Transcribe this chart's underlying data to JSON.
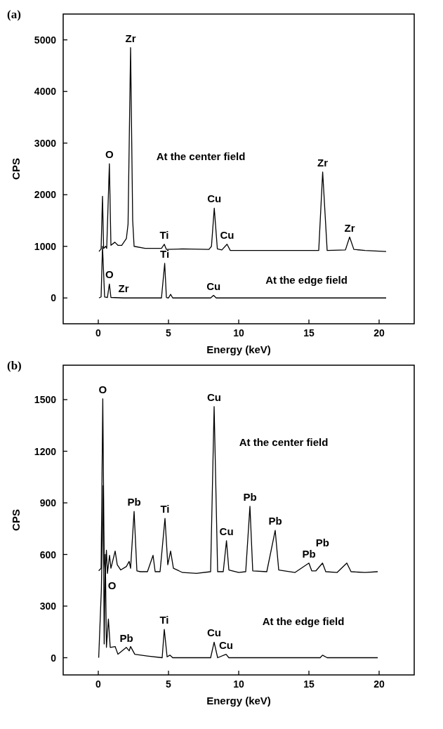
{
  "chart_data": [
    {
      "type": "line",
      "title": "(a)",
      "xlabel": "Energy (keV)",
      "ylabel": "CPS",
      "xlim": [
        -2.5,
        22.5
      ],
      "xticks": [
        0,
        5,
        10,
        15,
        20
      ],
      "ylim": [
        -500,
        5500
      ],
      "yticks": [
        0,
        1000,
        2000,
        3000,
        4000,
        5000
      ],
      "grid": false,
      "marker": "none",
      "line_style": "solid",
      "series": [
        {
          "color": "#000000",
          "x": [
            0.05,
            0.2,
            0.3,
            0.38,
            0.53,
            0.6,
            0.79,
            0.9,
            1.18,
            1.4,
            1.67,
            2.0,
            2.12,
            2.3,
            2.45,
            2.55,
            3.33,
            4.5,
            4.7,
            4.85,
            6.0,
            7.88,
            8.06,
            8.26,
            8.48,
            8.8,
            9.17,
            9.4,
            12.0,
            15.7,
            15.98,
            16.3,
            17.6,
            17.9,
            18.2,
            19.0,
            20.5
          ],
          "values": [
            900,
            950,
            1970,
            960,
            1000,
            960,
            2600,
            1020,
            1080,
            1020,
            1020,
            1150,
            1430,
            4850,
            1500,
            1000,
            960,
            960,
            1040,
            940,
            950,
            940,
            1000,
            1740,
            950,
            930,
            1040,
            920,
            920,
            920,
            2440,
            920,
            930,
            1180,
            940,
            920,
            900
          ]
        },
        {
          "color": "#000000",
          "x": [
            0.05,
            0.2,
            0.3,
            0.45,
            0.65,
            0.79,
            0.9,
            1.8,
            4.5,
            4.73,
            4.85,
            5.0,
            5.15,
            5.3,
            8.0,
            8.21,
            8.4,
            20.5
          ],
          "values": [
            0,
            20,
            1000,
            20,
            10,
            270,
            10,
            0,
            0,
            670,
            10,
            0,
            70,
            0,
            0,
            50,
            0,
            0
          ]
        }
      ],
      "annotations": [
        {
          "text": "Zr",
          "x": 2.3,
          "y": 4850
        },
        {
          "text": "O",
          "x": 0.79,
          "y": 2600
        },
        "At the center field",
        {
          "text": "Ti",
          "x": 4.7,
          "y": 1040
        },
        {
          "text": "Cu",
          "x": 8.26,
          "y": 1740
        },
        {
          "text": "Cu",
          "x": 9.17,
          "y": 1040
        },
        {
          "text": "Zr",
          "x": 15.98,
          "y": 2440
        },
        {
          "text": "Zr",
          "x": 17.9,
          "y": 1180
        },
        {
          "text": "Ti",
          "x": 4.73,
          "y": 670
        },
        {
          "text": "O",
          "x": 0.79,
          "y": 270
        },
        {
          "text": "Zr",
          "x": 1.8,
          "y": 0
        },
        {
          "text": "Cu",
          "x": 8.21,
          "y": 50
        },
        "At the edge field"
      ]
    },
    {
      "type": "line",
      "title": "(b)",
      "xlabel": "Energy (keV)",
      "ylabel": "CPS",
      "xlim": [
        -2.5,
        22.5
      ],
      "xticks": [
        0,
        5,
        10,
        15,
        20
      ],
      "ylim": [
        -100,
        1700
      ],
      "yticks": [
        0,
        300,
        600,
        900,
        1200,
        1500
      ],
      "grid": false,
      "marker": "none",
      "line_style": "solid",
      "series": [
        {
          "color": "#000000",
          "x": [
            0.03,
            0.2,
            0.32,
            0.42,
            0.5,
            0.58,
            0.65,
            0.8,
            0.9,
            1.2,
            1.35,
            1.6,
            2.0,
            2.2,
            2.3,
            2.55,
            2.75,
            3.0,
            3.5,
            3.9,
            4.05,
            4.4,
            4.75,
            4.95,
            5.15,
            5.35,
            6.0,
            7.0,
            8.0,
            8.25,
            8.5,
            8.9,
            9.13,
            9.3,
            10.0,
            10.5,
            10.8,
            11.0,
            12.0,
            12.6,
            12.85,
            14.0,
            15.0,
            15.2,
            15.5,
            15.97,
            16.2,
            17.0,
            17.7,
            18.0,
            19.0,
            19.9
          ],
          "values": [
            505,
            520,
            1505,
            560,
            500,
            625,
            490,
            595,
            520,
            620,
            540,
            510,
            530,
            560,
            520,
            850,
            505,
            500,
            500,
            595,
            500,
            500,
            810,
            540,
            620,
            520,
            495,
            490,
            500,
            1460,
            500,
            500,
            680,
            510,
            495,
            500,
            880,
            505,
            500,
            740,
            510,
            495,
            550,
            505,
            505,
            550,
            500,
            495,
            550,
            500,
            495,
            500
          ]
        },
        {
          "color": "#000000",
          "x": [
            0.03,
            0.22,
            0.35,
            0.42,
            0.5,
            0.58,
            0.72,
            0.85,
            1.2,
            1.4,
            2.0,
            2.2,
            2.3,
            2.6,
            3.5,
            4.55,
            4.7,
            4.9,
            5.1,
            5.3,
            8.0,
            8.25,
            8.5,
            9.1,
            9.3,
            15.8,
            15.97,
            16.3,
            19.9
          ],
          "values": [
            0,
            400,
            1000,
            80,
            600,
            60,
            225,
            60,
            65,
            20,
            60,
            40,
            65,
            20,
            10,
            0,
            165,
            5,
            15,
            0,
            0,
            90,
            0,
            20,
            0,
            0,
            15,
            0,
            0
          ]
        }
      ],
      "annotations": [
        {
          "text": "O",
          "x": 0.32,
          "y": 1505
        },
        {
          "text": "Cu",
          "x": 8.25,
          "y": 1460
        },
        "At the center field",
        {
          "text": "Pb",
          "x": 2.55,
          "y": 850
        },
        {
          "text": "Ti",
          "x": 4.75,
          "y": 810
        },
        {
          "text": "Cu",
          "x": 9.13,
          "y": 680
        },
        {
          "text": "Pb",
          "x": 10.8,
          "y": 880
        },
        {
          "text": "Pb",
          "x": 12.6,
          "y": 740
        },
        {
          "text": "Pb",
          "x": 15.0,
          "y": 550
        },
        {
          "text": "Pb",
          "x": 15.97,
          "y": 550
        },
        "O",
        {
          "text": "Pb",
          "x": 2.0,
          "y": 60
        },
        {
          "text": "Ti",
          "x": 4.7,
          "y": 165
        },
        {
          "text": "Cu",
          "x": 8.25,
          "y": 90
        },
        {
          "text": "Cu",
          "x": 9.1,
          "y": 20
        },
        "At the edge field"
      ]
    }
  ]
}
